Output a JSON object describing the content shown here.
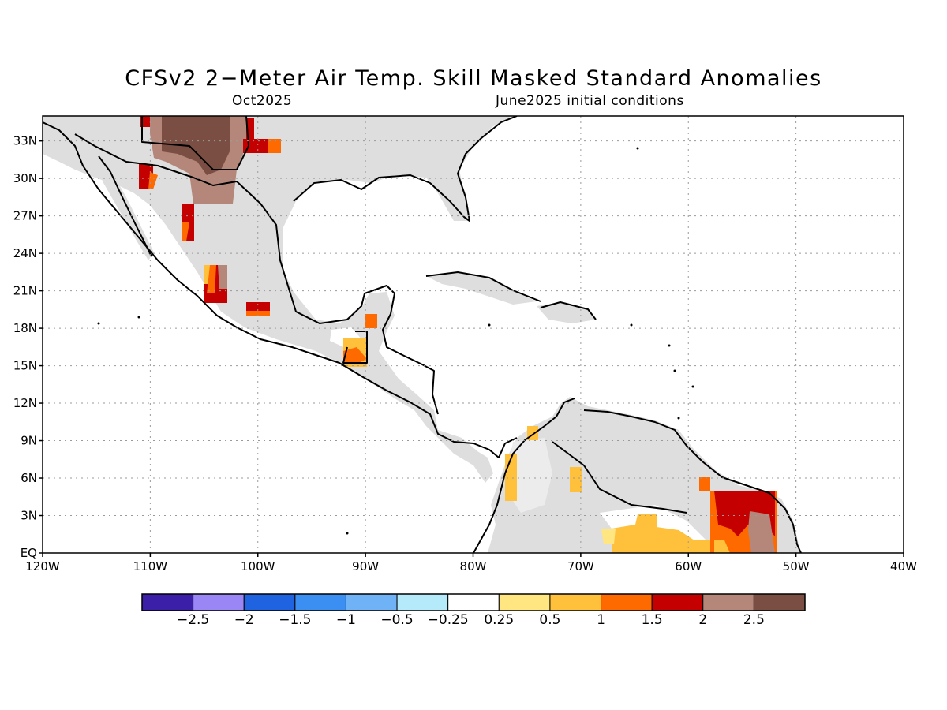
{
  "title": "CFSv2 2−Meter Air Temp. Skill Masked Standard Anomalies",
  "subtitle_left": "Oct2025",
  "subtitle_right": "June2025 initial conditions",
  "lat_labels": [
    "EQ",
    "3N",
    "6N",
    "9N",
    "12N",
    "15N",
    "18N",
    "21N",
    "24N",
    "27N",
    "30N",
    "33N"
  ],
  "lon_labels": [
    "120W",
    "110W",
    "100W",
    "90W",
    "80W",
    "70W",
    "60W",
    "50W",
    "40W"
  ],
  "colorbar": {
    "colors": [
      "#3c1fa8",
      "#9a87f5",
      "#1f63e0",
      "#3b8ef2",
      "#6fb2f5",
      "#b5eafa",
      "#ffffff",
      "#ffe680",
      "#ffc03c",
      "#ff6a00",
      "#c40000",
      "#b5877a",
      "#7a4e43"
    ],
    "labels": [
      "−2.5",
      "−2",
      "−1.5",
      "−1",
      "−0.5",
      "−0.25",
      "0.25",
      "0.5",
      "1",
      "1.5",
      "2",
      "2.5"
    ]
  },
  "colors": {
    "land_masked": "#dedede",
    "coast": "#000000",
    "grid": "#9a9a9a"
  }
}
